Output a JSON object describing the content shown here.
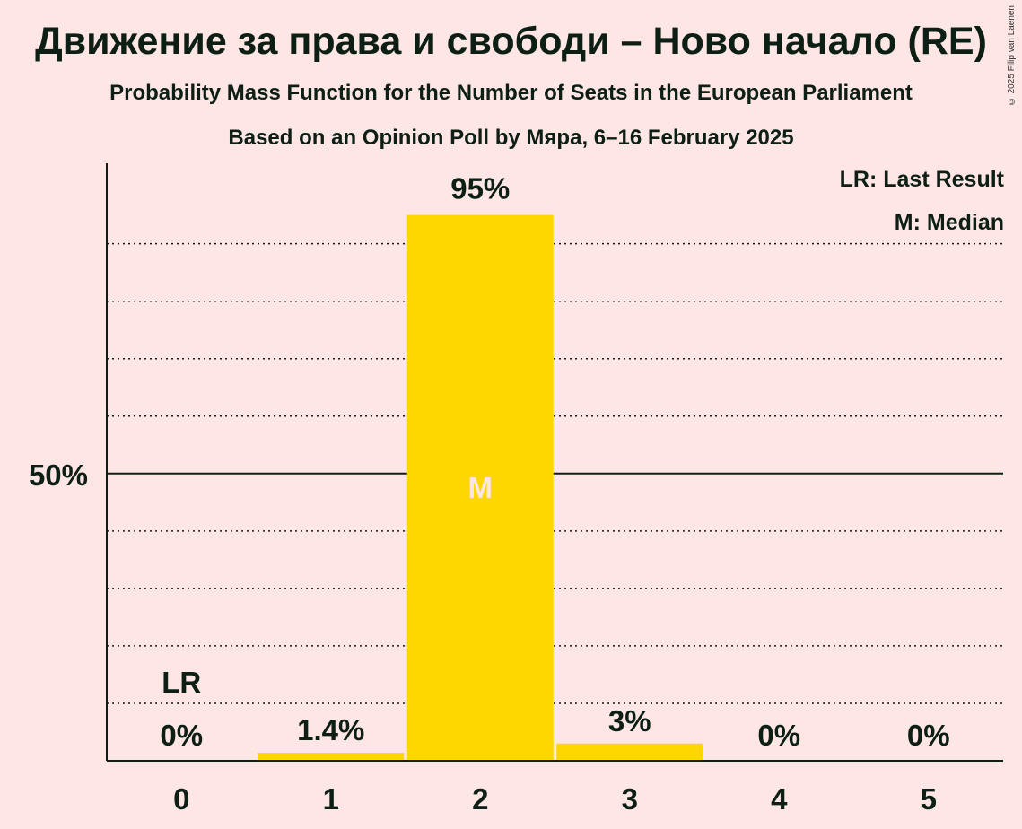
{
  "title": "Движение за права и свободи – Ново начало (RE)",
  "subtitle": "Probability Mass Function for the Number of Seats in the European Parliament",
  "subtitle2": "Based on an Opinion Poll by Мяра, 6–16 February 2025",
  "copyright": "© 2025 Filip van Laenen",
  "legend": {
    "last_result": "LR: Last Result",
    "median": "M: Median"
  },
  "colors": {
    "background": "#FDE6E4",
    "bar": "#FFD700",
    "text": "#0D1F14",
    "median_marker": "#FDE6E4"
  },
  "chart_data": {
    "type": "bar",
    "categories": [
      "0",
      "1",
      "2",
      "3",
      "4",
      "5"
    ],
    "values": [
      0,
      1.4,
      95,
      3,
      0,
      0
    ],
    "value_labels": [
      "0%",
      "1.4%",
      "95%",
      "3%",
      "0%",
      "0%"
    ],
    "ylim": [
      0,
      104
    ],
    "y_ticks": [
      {
        "value": 50,
        "label": "50%"
      }
    ],
    "gridlines": [
      10,
      20,
      30,
      40,
      60,
      70,
      80,
      90
    ],
    "last_result": {
      "category": "0",
      "label": "LR"
    },
    "median": {
      "category": "2",
      "label": "M"
    },
    "xlabel": "",
    "ylabel": ""
  }
}
